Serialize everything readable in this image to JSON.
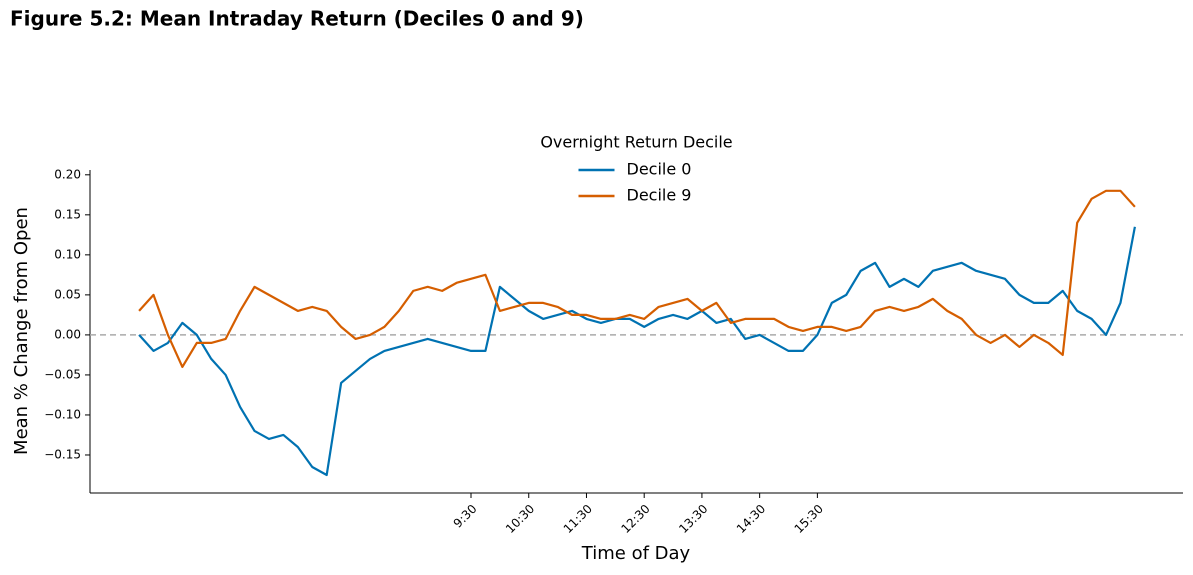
{
  "page_title": "Figure 5.2: Mean Intraday Return (Deciles 0 and 9)",
  "chart_data": {
    "type": "line",
    "xlabel": "Time of Day",
    "ylabel": "Mean % Change from Open",
    "legend_title": "Overnight Return Decile",
    "legend_loc": "upper center",
    "hline": 0,
    "x": [
      225,
      240,
      255,
      270,
      285,
      300,
      315,
      330,
      345,
      360,
      375,
      390,
      405,
      420,
      435,
      450,
      465,
      480,
      495,
      510,
      525,
      540,
      555,
      570,
      585,
      600,
      615,
      630,
      645,
      660,
      675,
      690,
      705,
      720,
      735,
      750,
      765,
      780,
      795,
      810,
      825,
      840,
      855,
      870,
      885,
      900,
      915,
      930,
      945,
      960,
      975,
      990,
      1005,
      1020,
      1035,
      1050,
      1065,
      1080,
      1095,
      1110,
      1125,
      1140,
      1155,
      1170,
      1185,
      1200,
      1215,
      1230,
      1245,
      1260
    ],
    "series": [
      {
        "name": "Decile 0",
        "color": "#0072b2",
        "values": [
          0.0,
          -0.02,
          -0.01,
          0.015,
          0.0,
          -0.03,
          -0.05,
          -0.09,
          -0.12,
          -0.13,
          -0.125,
          -0.14,
          -0.165,
          -0.175,
          -0.06,
          -0.045,
          -0.03,
          -0.02,
          -0.015,
          -0.01,
          -0.005,
          -0.01,
          -0.015,
          -0.02,
          -0.02,
          0.06,
          0.045,
          0.03,
          0.02,
          0.025,
          0.03,
          0.02,
          0.015,
          0.02,
          0.02,
          0.01,
          0.02,
          0.025,
          0.02,
          0.03,
          0.015,
          0.02,
          -0.005,
          0.0,
          -0.01,
          -0.02,
          -0.02,
          0.0,
          0.04,
          0.05,
          0.08,
          0.09,
          0.06,
          0.07,
          0.06,
          0.08,
          0.085,
          0.09,
          0.08,
          0.075,
          0.07,
          0.05,
          0.04,
          0.04,
          0.055,
          0.03,
          0.02,
          0.0,
          0.04,
          0.135
        ]
      },
      {
        "name": "Decile 9",
        "color": "#d55e00",
        "values": [
          0.03,
          0.05,
          0.0,
          -0.04,
          -0.01,
          -0.01,
          -0.005,
          0.03,
          0.06,
          0.05,
          0.04,
          0.03,
          0.035,
          0.03,
          0.01,
          -0.005,
          0.0,
          0.01,
          0.03,
          0.055,
          0.06,
          0.055,
          0.065,
          0.07,
          0.075,
          0.03,
          0.035,
          0.04,
          0.04,
          0.035,
          0.025,
          0.025,
          0.02,
          0.02,
          0.025,
          0.02,
          0.035,
          0.04,
          0.045,
          0.03,
          0.04,
          0.015,
          0.02,
          0.02,
          0.02,
          0.01,
          0.005,
          0.01,
          0.01,
          0.005,
          0.01,
          0.03,
          0.035,
          0.03,
          0.035,
          0.045,
          0.03,
          0.02,
          0.0,
          -0.01,
          0.0,
          -0.015,
          0.0,
          -0.01,
          -0.025,
          0.14,
          0.17,
          0.18,
          0.18,
          0.16
        ]
      }
    ],
    "xlim": [
      174,
      1310
    ],
    "xticks": [
      {
        "value": 570,
        "label": "9:30"
      },
      {
        "value": 630,
        "label": "10:30"
      },
      {
        "value": 690,
        "label": "11:30"
      },
      {
        "value": 750,
        "label": "12:30"
      },
      {
        "value": 810,
        "label": "13:30"
      },
      {
        "value": 870,
        "label": "14:30"
      },
      {
        "value": 930,
        "label": "15:30"
      }
    ],
    "ylim": [
      -0.1975,
      0.206
    ],
    "yticks": [
      {
        "value": -0.15,
        "label": "−0.15"
      },
      {
        "value": -0.1,
        "label": "−0.10"
      },
      {
        "value": -0.05,
        "label": "−0.05"
      },
      {
        "value": 0,
        "label": "0.00"
      },
      {
        "value": 0.05,
        "label": "0.05"
      },
      {
        "value": 0.1,
        "label": "0.10"
      },
      {
        "value": 0.15,
        "label": "0.15"
      },
      {
        "value": 0.2,
        "label": "0.20"
      }
    ]
  }
}
